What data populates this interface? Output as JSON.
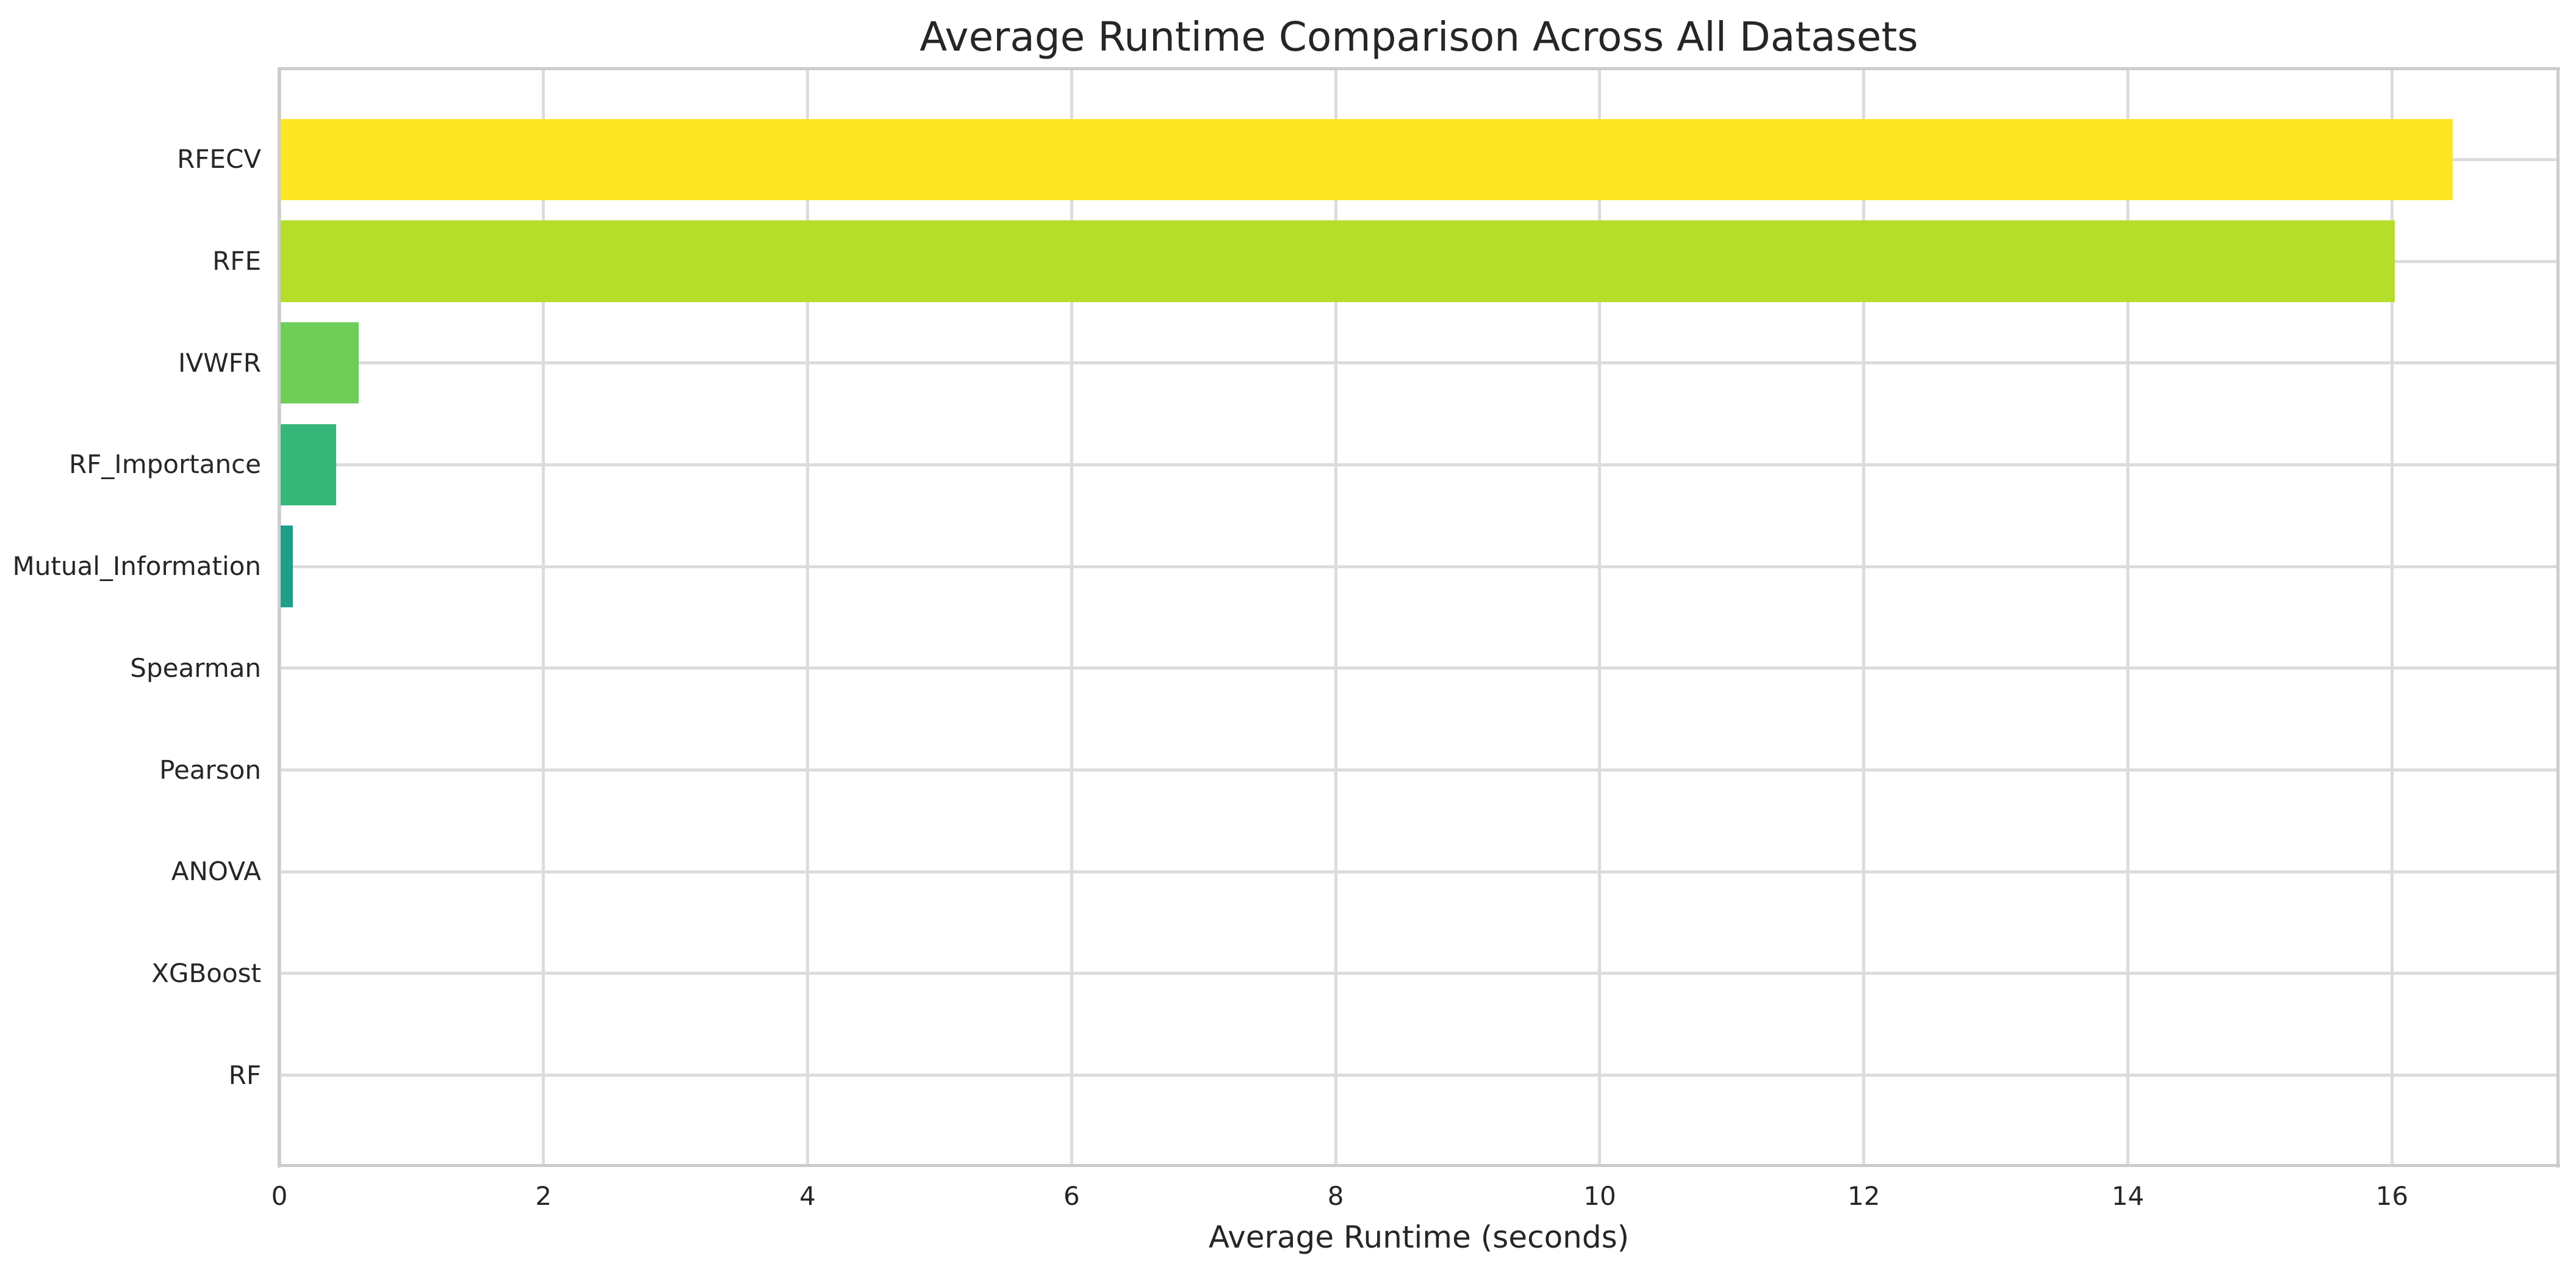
{
  "chart_data": {
    "type": "bar",
    "orientation": "horizontal",
    "title": "Average Runtime Comparison Across All Datasets",
    "xlabel": "Average Runtime (seconds)",
    "ylabel": "",
    "categories": [
      "RFECV",
      "RFE",
      "IVWFR",
      "RF_Importance",
      "Mutual_Information",
      "Spearman",
      "Pearson",
      "ANOVA",
      "XGBoost",
      "RF"
    ],
    "values": [
      16.46,
      16.02,
      0.6,
      0.43,
      0.1,
      0,
      0,
      0,
      0,
      0
    ],
    "bar_colors": [
      "#fde725",
      "#b5de2b",
      "#6ece58",
      "#35b779",
      "#1f9e89",
      "#26828e",
      "#31688e",
      "#3e4989",
      "#482878",
      "#440154"
    ],
    "colormap": "viridis",
    "xticks": [
      0,
      2,
      4,
      6,
      8,
      10,
      12,
      14,
      16
    ],
    "xlim": [
      0,
      17.26
    ],
    "grid": true,
    "legend_position": "none",
    "bar_height_fraction": 0.8
  },
  "style": {
    "grid_color": "#dcdcdc",
    "spine_color": "#cccccc",
    "text_color": "#262626",
    "background_color": "#ffffff"
  }
}
